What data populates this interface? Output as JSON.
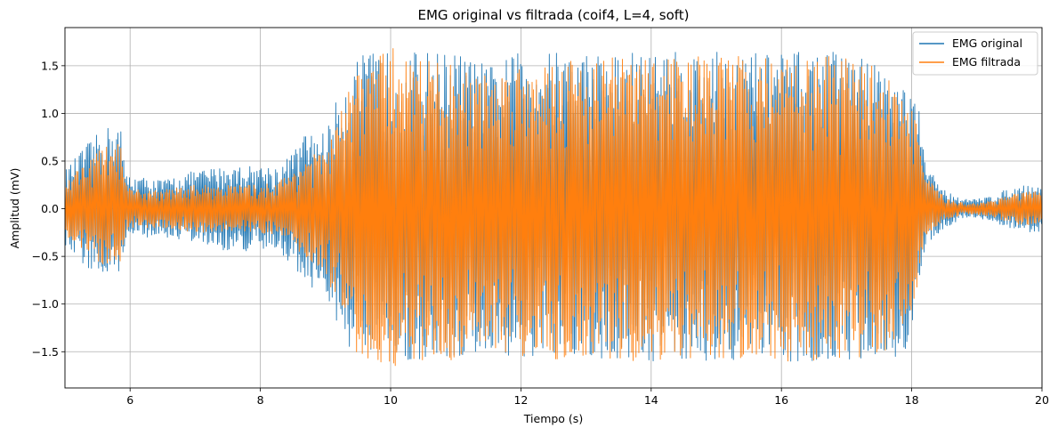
{
  "chart_data": {
    "type": "line",
    "title": "EMG original vs filtrada (coif4, L=4, soft)",
    "xlabel": "Tiempo (s)",
    "ylabel": "Amplitud (mV)",
    "xlim": [
      5,
      20
    ],
    "ylim": [
      -1.88,
      1.9
    ],
    "xticks": [
      6,
      8,
      10,
      12,
      14,
      16,
      18,
      20
    ],
    "yticks": [
      -1.5,
      -1.0,
      -0.5,
      0.0,
      0.5,
      1.0,
      1.5
    ],
    "ytick_labels": [
      "−1.5",
      "−1.0",
      "−0.5",
      "0.0",
      "0.5",
      "1.0",
      "1.5"
    ],
    "grid": true,
    "legend": "top-right",
    "series": [
      {
        "name": "EMG original",
        "color": "#1f77b4",
        "envelope": {
          "x": [
            5.0,
            5.3,
            5.6,
            5.85,
            5.92,
            6.0,
            6.5,
            7.0,
            7.5,
            8.0,
            8.3,
            8.5,
            8.7,
            9.0,
            9.2,
            9.5,
            9.8,
            10.0,
            10.5,
            11.0,
            11.5,
            12.0,
            13.0,
            14.0,
            15.0,
            16.0,
            17.0,
            17.5,
            17.9,
            18.1,
            18.2,
            18.5,
            18.8,
            19.0,
            19.3,
            19.5,
            19.8,
            20.0
          ],
          "upper": [
            0.4,
            0.65,
            0.85,
            0.9,
            0.4,
            0.35,
            0.3,
            0.4,
            0.45,
            0.45,
            0.45,
            0.6,
            0.8,
            0.8,
            1.2,
            1.6,
            1.65,
            1.65,
            1.65,
            1.65,
            1.5,
            1.65,
            1.65,
            1.65,
            1.65,
            1.65,
            1.65,
            1.55,
            1.3,
            1.1,
            0.5,
            0.2,
            0.1,
            0.1,
            0.15,
            0.22,
            0.25,
            0.25
          ],
          "lower": [
            -0.4,
            -0.6,
            -0.75,
            -0.8,
            -0.35,
            -0.3,
            -0.3,
            -0.35,
            -0.45,
            -0.45,
            -0.45,
            -0.6,
            -0.8,
            -0.9,
            -1.3,
            -1.6,
            -1.6,
            -1.6,
            -1.6,
            -1.6,
            -1.5,
            -1.6,
            -1.6,
            -1.6,
            -1.6,
            -1.6,
            -1.6,
            -1.55,
            -1.55,
            -1.0,
            -0.4,
            -0.2,
            -0.1,
            -0.1,
            -0.15,
            -0.2,
            -0.25,
            -0.25
          ]
        }
      },
      {
        "name": "EMG filtrada",
        "color": "#ff7f0e",
        "envelope": {
          "x": [
            5.0,
            5.3,
            5.6,
            5.85,
            5.92,
            6.0,
            6.5,
            7.0,
            7.5,
            8.0,
            8.3,
            8.5,
            8.7,
            9.0,
            9.2,
            9.5,
            9.8,
            10.0,
            10.5,
            11.0,
            11.5,
            12.0,
            13.0,
            14.0,
            15.0,
            16.0,
            17.0,
            17.5,
            17.9,
            18.1,
            18.2,
            18.5,
            18.8,
            19.0,
            19.3,
            19.5,
            19.8,
            20.0
          ],
          "upper": [
            0.3,
            0.5,
            0.65,
            0.7,
            0.3,
            0.2,
            0.2,
            0.25,
            0.25,
            0.25,
            0.3,
            0.4,
            0.55,
            0.6,
            0.95,
            1.5,
            1.6,
            1.7,
            1.6,
            1.5,
            1.4,
            1.55,
            1.6,
            1.6,
            1.6,
            1.6,
            1.6,
            1.5,
            1.2,
            0.9,
            0.35,
            0.12,
            0.06,
            0.06,
            0.1,
            0.15,
            0.18,
            0.18
          ],
          "lower": [
            -0.3,
            -0.45,
            -0.6,
            -0.65,
            -0.3,
            -0.2,
            -0.2,
            -0.25,
            -0.25,
            -0.25,
            -0.3,
            -0.4,
            -0.55,
            -0.7,
            -1.0,
            -1.55,
            -1.6,
            -1.7,
            -1.6,
            -1.6,
            -1.45,
            -1.55,
            -1.6,
            -1.6,
            -1.6,
            -1.6,
            -1.6,
            -1.5,
            -1.5,
            -0.85,
            -0.3,
            -0.12,
            -0.06,
            -0.06,
            -0.1,
            -0.15,
            -0.18,
            -0.18
          ]
        }
      }
    ]
  }
}
